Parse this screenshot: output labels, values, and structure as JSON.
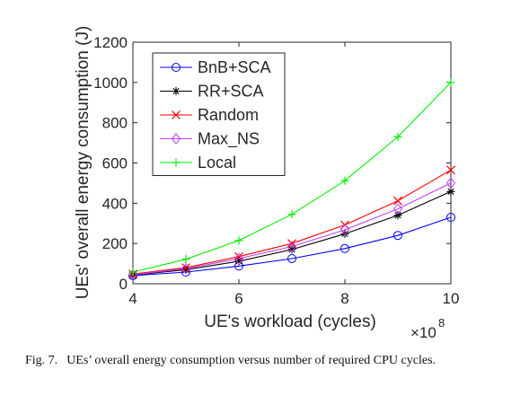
{
  "caption": {
    "label": "Fig. 7.",
    "text": "UEs’ overall energy consumption versus number of required CPU cycles."
  },
  "chart_data": {
    "type": "line",
    "xlabel": "UE's workload (cycles)",
    "ylabel": "UEs' overall energy consumption (J)",
    "x_multiplier": "×10",
    "x_multiplier_exp": "8",
    "xlim": [
      4,
      10
    ],
    "ylim": [
      0,
      1200
    ],
    "x_ticks": [
      4,
      6,
      8,
      10
    ],
    "y_ticks": [
      0,
      200,
      400,
      600,
      800,
      1000,
      1200
    ],
    "x": [
      4,
      5,
      6,
      7,
      8,
      9,
      10
    ],
    "grid": false,
    "legend_position": "top-left",
    "series": [
      {
        "name": "BnB+SCA",
        "color": "#0000ff",
        "marker": "circle",
        "values": [
          40,
          58,
          88,
          125,
          175,
          240,
          330
        ]
      },
      {
        "name": "RR+SCA",
        "color": "#000000",
        "marker": "star",
        "values": [
          43,
          70,
          112,
          170,
          248,
          340,
          458
        ]
      },
      {
        "name": "Random",
        "color": "#ff0000",
        "marker": "x",
        "values": [
          48,
          80,
          135,
          200,
          292,
          412,
          565
        ]
      },
      {
        "name": "Max_NS",
        "color": "#bf40ff",
        "marker": "diamond",
        "values": [
          45,
          75,
          125,
          185,
          268,
          372,
          500
        ]
      },
      {
        "name": "Local",
        "color": "#00ee00",
        "marker": "plus",
        "values": [
          58,
          122,
          215,
          345,
          512,
          730,
          1000
        ]
      }
    ]
  }
}
